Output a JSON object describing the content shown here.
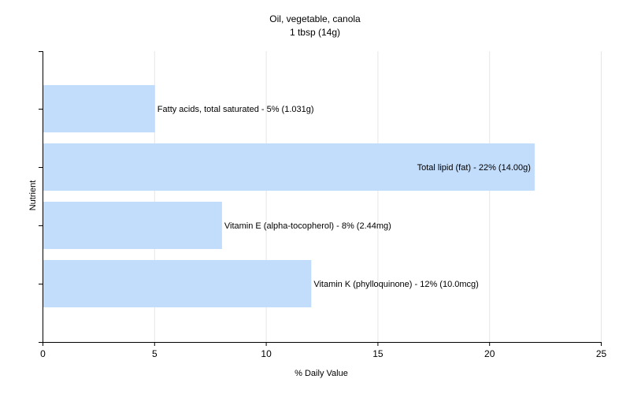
{
  "chart_data": {
    "type": "bar",
    "orientation": "horizontal",
    "title": "Oil, vegetable, canola",
    "subtitle": "1 tbsp (14g)",
    "xlabel": "% Daily Value",
    "ylabel": "Nutrient",
    "xlim": [
      0,
      25
    ],
    "xticks": [
      0,
      5,
      10,
      15,
      20,
      25
    ],
    "grid": true,
    "bar_color": "#c2dcfc",
    "bars": [
      {
        "label": "Fatty acids, total saturated - 5% (1.031g)",
        "value": 5
      },
      {
        "label": "Total lipid (fat) - 22% (14.00g)",
        "value": 22
      },
      {
        "label": "Vitamin E (alpha-tocopherol) - 8% (2.44mg)",
        "value": 8
      },
      {
        "label": "Vitamin K (phylloquinone) - 12% (10.0mcg)",
        "value": 12
      }
    ]
  }
}
